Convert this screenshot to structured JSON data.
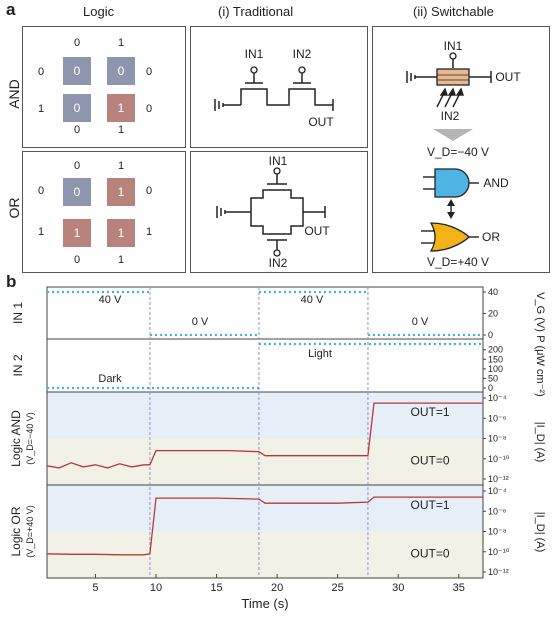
{
  "panel_a_letter": "a",
  "panel_b_letter": "b",
  "headers": {
    "logic": "Logic",
    "traditional": "(i) Traditional",
    "switchable": "(ii) Switchable"
  },
  "row_labels": {
    "and": "AND",
    "or": "OR"
  },
  "and_grid": {
    "top": [
      "0",
      "1"
    ],
    "left": [
      "0",
      "1"
    ],
    "right": [
      "0",
      "0"
    ],
    "bottom": [
      "0",
      "1"
    ],
    "cells": [
      "0",
      "0",
      "0",
      "1"
    ]
  },
  "or_grid": {
    "top": [
      "0",
      "1"
    ],
    "left": [
      "0",
      "1"
    ],
    "right": [
      "0",
      "1"
    ],
    "bottom": [
      "0",
      "1"
    ],
    "cells": [
      "0",
      "1",
      "1",
      "1"
    ]
  },
  "traditional": {
    "in1": "IN1",
    "in2": "IN2",
    "out": "OUT"
  },
  "switchable": {
    "in1": "IN1",
    "in2": "IN2",
    "out": "OUT",
    "vd_neg": "V_D=−40 V",
    "vd_pos": "V_D=+40 V",
    "gate_and": "AND",
    "gate_or": "OR"
  },
  "colors": {
    "zero_cell": "#8e96ad",
    "one_cell": "#b9837d",
    "and_gate": "#4fb3e3",
    "or_gate": "#f2b318",
    "trace": "#b33a3a",
    "dotted": "#36b9d9",
    "shade_high": "#e6eef7",
    "shade_low": "#f2f1e6",
    "vline": "#9c8fc9"
  },
  "chart_data": {
    "type": "line",
    "xlabel": "Time (s)",
    "xlim": [
      1,
      37
    ],
    "xticks": [
      "5",
      "10",
      "15",
      "20",
      "25",
      "30",
      "35"
    ],
    "switch_times": [
      9.5,
      18.5,
      27.5
    ],
    "rows": [
      {
        "name": "IN 1",
        "right_label": "V_G (V)",
        "yticks": [
          "40",
          "20",
          "0"
        ],
        "segments": [
          {
            "x": [
              1,
              9.5
            ],
            "y": 40
          },
          {
            "x": [
              9.5,
              18.5
            ],
            "y": 0
          },
          {
            "x": [
              18.5,
              27.5
            ],
            "y": 40
          },
          {
            "x": [
              27.5,
              37
            ],
            "y": 0
          }
        ],
        "annotations": [
          "40 V",
          "0 V",
          "40 V",
          "0 V"
        ]
      },
      {
        "name": "IN 2",
        "right_label": "P (μW cm⁻²)",
        "yticks": [
          "200",
          "150",
          "100",
          "50",
          "0"
        ],
        "segments": [
          {
            "x": [
              1,
              18.5
            ],
            "y": 0
          },
          {
            "x": [
              18.5,
              37
            ],
            "y": 230
          }
        ],
        "annotations": [
          "Dark",
          "Light"
        ]
      },
      {
        "name": "Logic AND",
        "sub": "(V_D=−40 V)",
        "right_label": "|I_D| (A)",
        "yticks": [
          "10⁻⁴",
          "10⁻⁶",
          "10⁻⁸",
          "10⁻¹⁰",
          "10⁻¹²"
        ],
        "levels": [
          "OUT=1",
          "OUT=0"
        ],
        "points": [
          [
            1,
            -10.7
          ],
          [
            2,
            -10.9
          ],
          [
            3,
            -10.4
          ],
          [
            4,
            -10.8
          ],
          [
            5,
            -10.6
          ],
          [
            6,
            -10.9
          ],
          [
            7,
            -10.5
          ],
          [
            8,
            -10.8
          ],
          [
            9,
            -10.6
          ],
          [
            9.5,
            -10.6
          ],
          [
            10,
            -9.2
          ],
          [
            12,
            -9.2
          ],
          [
            14,
            -9.2
          ],
          [
            16,
            -9.2
          ],
          [
            18.5,
            -9.3
          ],
          [
            19,
            -9.7
          ],
          [
            22,
            -9.7
          ],
          [
            25,
            -9.7
          ],
          [
            27.5,
            -9.7
          ],
          [
            28,
            -4.5
          ],
          [
            32,
            -4.5
          ],
          [
            37,
            -4.5
          ]
        ]
      },
      {
        "name": "Logic OR",
        "sub": "(V_D=+40 V)",
        "right_label": "|I_D| (A)",
        "yticks": [
          "10⁻⁴",
          "10⁻⁶",
          "10⁻⁸",
          "10⁻¹⁰",
          "10⁻¹²"
        ],
        "levels": [
          "OUT=1",
          "OUT=0"
        ],
        "points": [
          [
            1,
            -10.2
          ],
          [
            3,
            -10.25
          ],
          [
            5,
            -10.25
          ],
          [
            7,
            -10.3
          ],
          [
            9,
            -10.3
          ],
          [
            9.5,
            -10.2
          ],
          [
            10,
            -4.7
          ],
          [
            12,
            -4.7
          ],
          [
            15,
            -4.7
          ],
          [
            18.5,
            -4.8
          ],
          [
            19,
            -5.2
          ],
          [
            22,
            -5.2
          ],
          [
            25,
            -5.2
          ],
          [
            27.5,
            -5.1
          ],
          [
            28,
            -4.6
          ],
          [
            32,
            -4.6
          ],
          [
            37,
            -4.6
          ]
        ]
      }
    ]
  }
}
